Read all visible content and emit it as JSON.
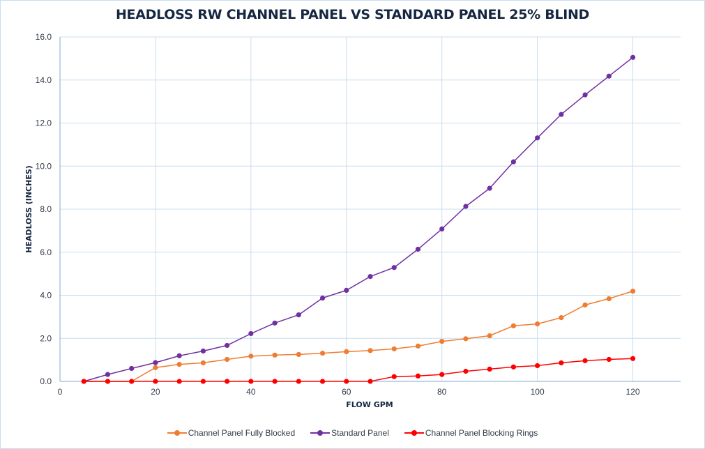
{
  "chart_data": {
    "type": "line",
    "title": "HEADLOSS RW CHANNEL PANEL VS STANDARD PANEL 25% BLIND",
    "xlabel": "FLOW GPM",
    "ylabel": "HEADLOSS (INCHES)",
    "xlim": [
      0,
      130
    ],
    "ylim": [
      0,
      16
    ],
    "grid": true,
    "legend_position": "bottom",
    "x_ticks": [
      0,
      20,
      40,
      60,
      80,
      100,
      120
    ],
    "x_tick_labels": [
      "0",
      "20",
      "40",
      "60",
      "80",
      "100",
      "120"
    ],
    "y_ticks": [
      0,
      2,
      4,
      6,
      8,
      10,
      12,
      14,
      16
    ],
    "y_tick_labels": [
      "0.0",
      "2.0",
      "4.0",
      "6.0",
      "8.0",
      "10.0",
      "12.0",
      "14.0",
      "16.0"
    ],
    "x": [
      5,
      10,
      15,
      20,
      25,
      30,
      35,
      40,
      45,
      50,
      55,
      60,
      65,
      70,
      75,
      80,
      85,
      90,
      95,
      100,
      105,
      110,
      115,
      120
    ],
    "series": [
      {
        "name": "Channel Panel Fully Blocked",
        "color": "#ED7D31",
        "values": [
          0,
          0,
          0,
          0.64,
          0.79,
          0.86,
          1.02,
          1.17,
          1.22,
          1.25,
          1.31,
          1.38,
          1.43,
          1.51,
          1.64,
          1.86,
          1.98,
          2.12,
          2.58,
          2.67,
          2.96,
          3.55,
          3.84,
          4.19
        ]
      },
      {
        "name": "Standard Panel",
        "color": "#7030A0",
        "values": [
          0,
          0.32,
          0.6,
          0.87,
          1.19,
          1.41,
          1.67,
          2.22,
          2.71,
          3.09,
          3.87,
          4.23,
          4.87,
          5.29,
          6.14,
          7.08,
          8.13,
          8.97,
          10.2,
          11.31,
          12.4,
          13.31,
          14.18,
          15.05
        ]
      },
      {
        "name": "Channel Panel Blocking Rings",
        "color": "#FF0000",
        "values": [
          0,
          0,
          0,
          0,
          0,
          0,
          0,
          0,
          0,
          0,
          0,
          0,
          0,
          0.22,
          0.25,
          0.32,
          0.47,
          0.57,
          0.67,
          0.73,
          0.86,
          0.96,
          1.02,
          1.06
        ]
      }
    ]
  },
  "colors": {
    "grid": "#C8DDEF",
    "axis": "#7FA8D6",
    "text": "#152741"
  }
}
